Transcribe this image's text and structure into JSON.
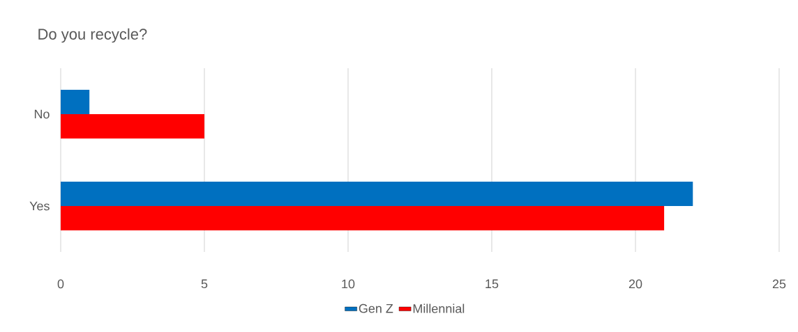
{
  "chart_data": {
    "type": "bar",
    "orientation": "horizontal",
    "title": "Do you recycle?",
    "categories": [
      "No",
      "Yes"
    ],
    "series": [
      {
        "name": "Gen Z",
        "color": "#0070c0",
        "values": [
          1,
          22
        ]
      },
      {
        "name": "Millennial",
        "color": "#ff0000",
        "values": [
          5,
          21
        ]
      }
    ],
    "xlim": [
      0,
      25
    ],
    "xticks": [
      0,
      5,
      10,
      15,
      20,
      25
    ],
    "grid": "x",
    "legend": "bottom"
  }
}
